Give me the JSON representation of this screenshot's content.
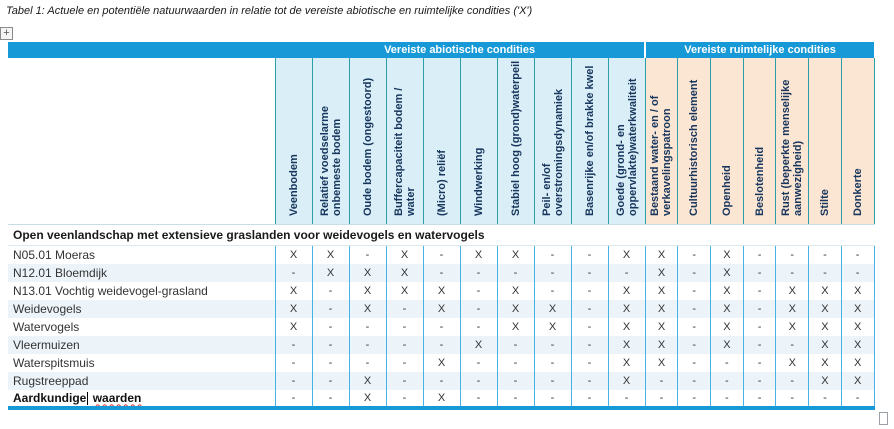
{
  "page": {
    "title": "Tabel 1: Actuele en potentiële natuurwaarden in relatie tot de vereiste abiotische en ruimtelijke condities ('X')"
  },
  "icons": {
    "table_move_handle": "+"
  },
  "table": {
    "group_headers": {
      "abiotic": "Vereiste abiotische condities",
      "spatial": "Vereiste ruimtelijke condities"
    },
    "abiotic_columns": [
      "Veenbodem",
      "Relatief voedselarme onbemeste bodem",
      "Oude bodem (ongestoord)",
      "Buffercapaciteit bodem / water",
      "(Micro) reliëf",
      "Windwerking",
      "Stabiel hoog (grond)waterpeil",
      "Peil- en/of overstromingsdynamiek",
      "Basenrijke en/of brakke kwel",
      "Goede (grond- en oppervlakte)waterkwaliteit"
    ],
    "spatial_columns": [
      "Bestaand water- en / of verkavelingspatroon",
      "Cultuurhistorisch element",
      "Openheid",
      "Beslotenheid",
      "Rust (beperkte menselijke aanwezigheid)",
      "Stilte",
      "Donkerte"
    ],
    "section_header": "Open veenlandschap met extensieve graslanden voor weidevogels en watervogels",
    "rows": [
      {
        "label": "N05.01 Moeras",
        "values": [
          "X",
          "X",
          "-",
          "X",
          "-",
          "X",
          "X",
          "-",
          "-",
          "X",
          "X",
          "-",
          "X",
          "-",
          "-",
          "-",
          "-"
        ]
      },
      {
        "label": "N12.01 Bloemdijk",
        "values": [
          "-",
          "X",
          "X",
          "X",
          "-",
          "-",
          "-",
          "-",
          "-",
          "-",
          "X",
          "-",
          "X",
          "-",
          "-",
          "-",
          "-"
        ]
      },
      {
        "label": "N13.01 Vochtig weidevogel-grasland",
        "values": [
          "X",
          "-",
          "X",
          "X",
          "X",
          "-",
          "X",
          "-",
          "-",
          "X",
          "X",
          "-",
          "X",
          "-",
          "X",
          "X",
          "X"
        ]
      },
      {
        "label": "Weidevogels",
        "values": [
          "X",
          "-",
          "X",
          "-",
          "X",
          "-",
          "X",
          "X",
          "-",
          "X",
          "X",
          "-",
          "X",
          "-",
          "X",
          "X",
          "X"
        ]
      },
      {
        "label": "Watervogels",
        "values": [
          "X",
          "-",
          "-",
          "-",
          "-",
          "-",
          "X",
          "X",
          "-",
          "X",
          "X",
          "-",
          "X",
          "-",
          "X",
          "X",
          "X"
        ]
      },
      {
        "label": "Vleermuizen",
        "values": [
          "-",
          "-",
          "-",
          "-",
          "-",
          "X",
          "-",
          "-",
          "-",
          "X",
          "X",
          "-",
          "X",
          "-",
          "-",
          "X",
          "X"
        ]
      },
      {
        "label": "Waterspitsmuis",
        "values": [
          "-",
          "-",
          "-",
          "-",
          "X",
          "-",
          "-",
          "-",
          "-",
          "X",
          "X",
          "-",
          "-",
          "-",
          "X",
          "X",
          "X"
        ]
      },
      {
        "label": "Rugstreeppad",
        "values": [
          "-",
          "-",
          "X",
          "-",
          "-",
          "-",
          "-",
          "-",
          "-",
          "X",
          "-",
          "-",
          "-",
          "-",
          "-",
          "X",
          "X"
        ]
      },
      {
        "label": "Aardkundige waarden",
        "bold": true,
        "cursor_after": "Aardkundige",
        "spellcheck_word": "waarden",
        "values": [
          "-",
          "-",
          "X",
          "-",
          "X",
          "-",
          "-",
          "-",
          "-",
          "-",
          "-",
          "-",
          "-",
          "-",
          "-",
          "-",
          "-"
        ]
      }
    ]
  },
  "colors": {
    "header_blue": "#1699d6",
    "abiotic_header_bg": "#daeef7",
    "spatial_header_bg": "#fbe5d3",
    "header_separator": "#2b9fa8",
    "data_separator": "#45b3e5",
    "row_stripe": "#ecf4fa",
    "header_text": "#17365d",
    "spellcheck_red": "#e03c31"
  }
}
